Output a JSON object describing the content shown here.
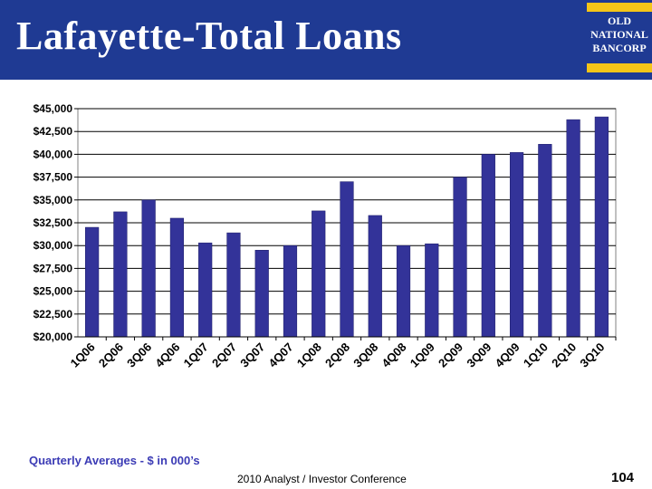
{
  "header": {
    "title": "Lafayette-Total Loans",
    "logo_lines": [
      "OLD",
      "NATIONAL",
      "BANCORP"
    ]
  },
  "chart_data": {
    "type": "bar",
    "categories": [
      "1Q06",
      "2Q06",
      "3Q06",
      "4Q06",
      "1Q07",
      "2Q07",
      "3Q07",
      "4Q07",
      "1Q08",
      "2Q08",
      "3Q08",
      "4Q08",
      "1Q09",
      "2Q09",
      "3Q09",
      "4Q09",
      "1Q10",
      "2Q10",
      "3Q10"
    ],
    "values": [
      32000,
      33700,
      35000,
      33000,
      30300,
      31400,
      29500,
      30000,
      33800,
      37000,
      33300,
      30000,
      30200,
      37500,
      40000,
      40200,
      41100,
      43800,
      44100
    ],
    "ylim": [
      20000,
      45000
    ],
    "yticks": [
      "$20,000",
      "$22,500",
      "$25,000",
      "$27,500",
      "$30,000",
      "$32,500",
      "$35,000",
      "$37,500",
      "$40,000",
      "$42,500",
      "$45,000"
    ],
    "grid": true,
    "bar_color": "#333399"
  },
  "footer": {
    "note": "Quarterly Averages - $ in 000’s",
    "conference": "2010 Analyst / Investor Conference",
    "page_number": "104"
  }
}
